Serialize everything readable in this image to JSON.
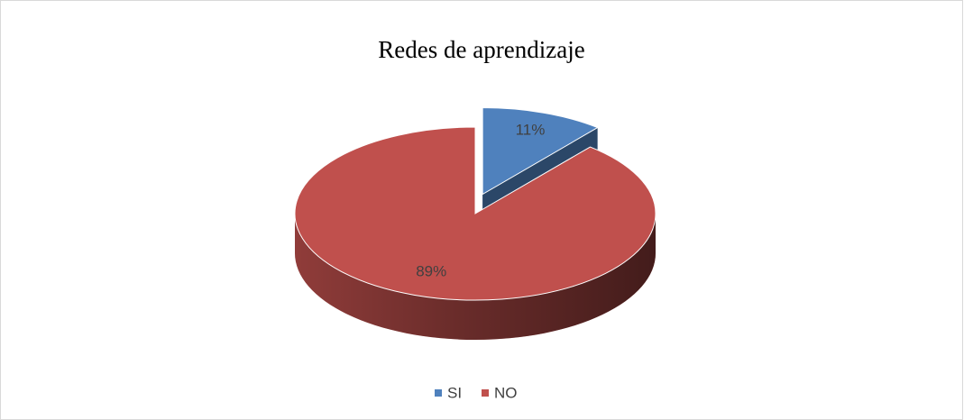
{
  "chart_data": {
    "type": "pie",
    "title": "Redes de aprendizaje",
    "categories": [
      "SI",
      "NO"
    ],
    "values": [
      11,
      89
    ],
    "value_labels": [
      "11%",
      "89%"
    ],
    "colors": [
      "#4f81bd",
      "#c0504d"
    ],
    "legend": "bottom"
  }
}
